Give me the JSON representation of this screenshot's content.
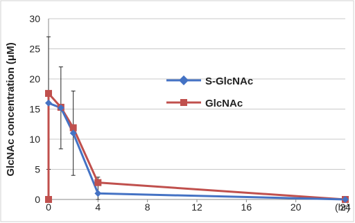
{
  "chart_data": {
    "type": "line",
    "ylabel": "GlcNAc concentration (μM)",
    "xlabel_suffix": "(hr)",
    "xlim": [
      0,
      24
    ],
    "ylim": [
      0,
      30
    ],
    "x_ticks": [
      "0",
      "4",
      "8",
      "12",
      "16",
      "20",
      "24"
    ],
    "y_ticks": [
      "0",
      "5",
      "10",
      "15",
      "20",
      "25",
      "30"
    ],
    "legend_position": "right-middle",
    "series": [
      {
        "name": "S-GlcNAc",
        "color": "#4472C4",
        "marker": "diamond",
        "x": [
          0,
          1,
          2,
          4,
          24
        ],
        "y": [
          16,
          15.2,
          11,
          1,
          0
        ],
        "error": [
          11,
          6.8,
          7,
          2.7,
          0
        ],
        "draw_start_vertical": false
      },
      {
        "name": "GlcNAc",
        "color": "#C0504D",
        "marker": "square",
        "x": [
          0,
          0,
          1,
          2,
          4,
          24
        ],
        "y": [
          0,
          17.6,
          15.3,
          11.9,
          2.8,
          0
        ],
        "error": [
          0,
          0,
          0,
          0,
          0,
          0
        ],
        "draw_start_vertical": true
      }
    ]
  }
}
